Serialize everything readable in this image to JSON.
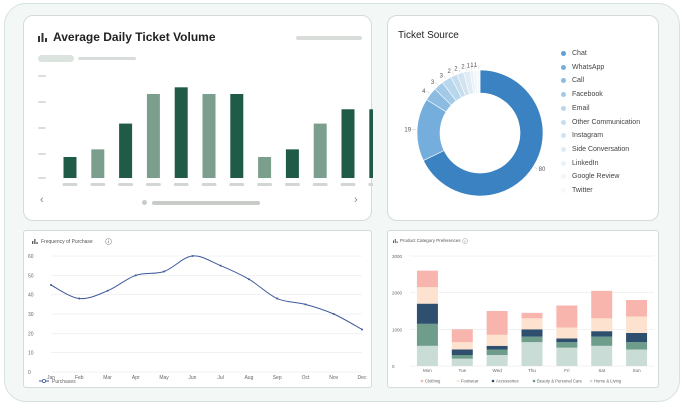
{
  "colors": {
    "dark_green": "#1f5b46",
    "mid_green": "#7b9e8d",
    "blue": "#3a82c2",
    "line_blue": "#3e5a9c"
  },
  "ticket_volume": {
    "title": "Average Daily Ticket Volume",
    "icon": "bar-chart-icon",
    "prev_icon": "chevron-left-icon",
    "next_icon": "chevron-right-icon",
    "prev_glyph": "‹",
    "next_glyph": "›"
  },
  "ticket_source": {
    "title": "Ticket Source",
    "legend": [
      "Chat",
      "WhatsApp",
      "Call",
      "Facebook",
      "Email",
      "Other Communication",
      "Instagram",
      "Side Conversation",
      "LinkedIn",
      "Google Review",
      "Twitter"
    ],
    "legend_colors": [
      "#5f9fd6",
      "#75aedc",
      "#8bbbe1",
      "#a2c9e7",
      "#b8d6ec",
      "#c6ddee",
      "#d2e4f1",
      "#dfebf5",
      "#eaf2f8",
      "#f1f6fa",
      "#f6f9fc"
    ]
  },
  "purchase": {
    "title": "Frequency of Purchase",
    "legend": "Purchases",
    "info_icon": "info-icon"
  },
  "category": {
    "title": "Product Category Preferences",
    "info_icon": "info-icon",
    "legend": [
      "Clothing",
      "Footwear",
      "Accessories",
      "Beauty & Personal Care",
      "Home & Living"
    ]
  },
  "chart_data": [
    {
      "type": "bar",
      "title": "Average Daily Ticket Volume",
      "categories": [
        "",
        "",
        "",
        "",
        "",
        "",
        "",
        "",
        "",
        "",
        "",
        ""
      ],
      "series": [
        {
          "values": [
            22,
            30,
            57,
            88,
            95,
            88,
            88,
            22,
            30,
            57,
            72,
            72
          ]
        }
      ],
      "ylim": [
        0,
        110
      ]
    },
    {
      "type": "pie",
      "title": "Ticket Source",
      "categories": [
        "Chat",
        "WhatsApp",
        "Call",
        "Facebook",
        "Email",
        "Other Communication",
        "Instagram",
        "Side Conversation",
        "LinkedIn",
        "Google Review",
        "Twitter"
      ],
      "values": [
        80,
        19,
        4,
        3,
        3,
        2,
        2,
        2,
        1,
        1,
        1
      ],
      "labels": [
        "80",
        "19",
        "4",
        "3",
        "3",
        "2",
        "2",
        "2",
        "1",
        "1",
        "1"
      ]
    },
    {
      "type": "line",
      "title": "Frequency of Purchase",
      "x": [
        "Jan",
        "Feb",
        "Mar",
        "Apr",
        "May",
        "Jun",
        "Jul",
        "Aug",
        "Sep",
        "Oct",
        "Nov",
        "Dec"
      ],
      "series": [
        {
          "name": "Purchases",
          "values": [
            45,
            38,
            42,
            50,
            52,
            60,
            55,
            48,
            38,
            35,
            30,
            22
          ]
        }
      ],
      "yticks": [
        "0",
        "10",
        "20",
        "30",
        "40",
        "50",
        "60"
      ],
      "ylim": [
        0,
        60
      ]
    },
    {
      "type": "bar",
      "title": "Product Category Preferences",
      "stacked": true,
      "categories": [
        "Mon",
        "Tue",
        "Wed",
        "Thu",
        "Fri",
        "Sat",
        "Sun"
      ],
      "series": [
        {
          "name": "Home & Living",
          "values": [
            550,
            200,
            300,
            650,
            500,
            550,
            450
          ]
        },
        {
          "name": "Beauty & Personal Care",
          "values": [
            600,
            100,
            150,
            150,
            150,
            250,
            200
          ]
        },
        {
          "name": "Accessories",
          "values": [
            550,
            150,
            100,
            200,
            100,
            150,
            250
          ]
        },
        {
          "name": "Footwear",
          "values": [
            450,
            200,
            300,
            300,
            300,
            350,
            450
          ]
        },
        {
          "name": "Clothing",
          "values": [
            450,
            350,
            650,
            150,
            600,
            750,
            450
          ]
        }
      ],
      "yticks": [
        "0",
        "1000",
        "2000",
        "3000"
      ],
      "ylim": [
        0,
        3000
      ]
    }
  ]
}
